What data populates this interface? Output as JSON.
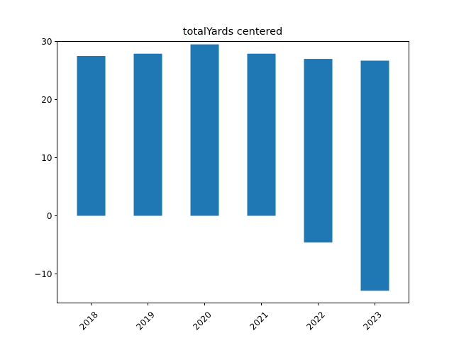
{
  "chart_data": {
    "type": "bar",
    "title": "totalYards centered",
    "xlabel": "",
    "ylabel": "",
    "categories": [
      "2018",
      "2019",
      "2020",
      "2021",
      "2022",
      "2023"
    ],
    "series": [
      {
        "color": "#1f77b4",
        "segments": [
          {
            "bottom": 0,
            "top": 27.5
          },
          {
            "bottom": 0,
            "top": 27.9
          },
          {
            "bottom": 0,
            "top": 29.5
          },
          {
            "bottom": 0,
            "top": 27.9
          },
          {
            "bottom": -4.6,
            "top": 27.0
          },
          {
            "bottom": -12.9,
            "top": 26.7
          }
        ]
      }
    ],
    "ylim": [
      -15,
      30
    ],
    "yticks": [
      -10,
      0,
      10,
      20,
      30
    ],
    "ytick_labels": [
      "−10",
      "0",
      "10",
      "20",
      "30"
    ],
    "grid": false,
    "legend": "none",
    "xtick_rotation_deg": 45
  }
}
